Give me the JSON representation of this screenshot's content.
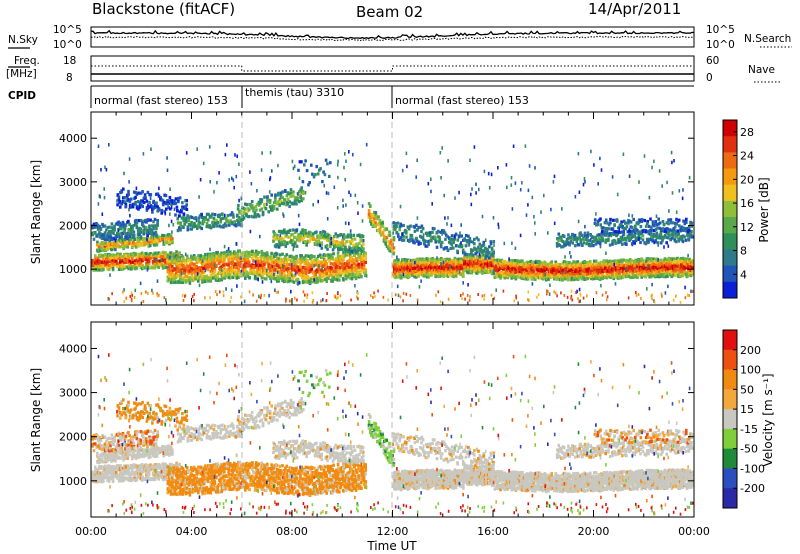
{
  "header": {
    "station": "Blackstone (fitACF)",
    "beam": "Beam 02",
    "date": "14/Apr/2011"
  },
  "summary_labels": {
    "nsky": "N.Sky",
    "nsearch": "N.Search",
    "freq": "Freq.",
    "freq_unit": "[MHz]",
    "nave": "Nave",
    "cpid": "CPID",
    "nsky_ticks": [
      "10^5",
      "10^0"
    ],
    "nsearch_ticks": [
      "10^5",
      "10^0"
    ],
    "freq_ticks": [
      "18",
      "8"
    ],
    "nave_ticks": [
      "60",
      "0"
    ]
  },
  "cpid_segments": [
    {
      "label": "normal (fast stereo) 153",
      "start_hour": 0,
      "end_hour": 6
    },
    {
      "label": "themis (tau) 3310",
      "start_hour": 6,
      "end_hour": 12
    },
    {
      "label": "normal (fast stereo) 153",
      "start_hour": 12,
      "end_hour": 24
    }
  ],
  "chart_data": [
    {
      "type": "heatmap",
      "name": "power",
      "ylabel": "Slant Range [km]",
      "xlabel": "",
      "x_ticks": [
        "00:00",
        "04:00",
        "08:00",
        "12:00",
        "16:00",
        "20:00",
        "00:00"
      ],
      "x_range_hours": [
        0,
        24
      ],
      "y_ticks": [
        1000,
        2000,
        3000,
        4000
      ],
      "ylim": [
        180,
        4600
      ],
      "colorbar": {
        "label": "Power [dB]",
        "ticks": [
          4,
          8,
          12,
          16,
          20,
          24,
          28
        ],
        "range": [
          0,
          30
        ],
        "colors": [
          "#0a1fd6",
          "#1f55b8",
          "#2e7a8a",
          "#2f8f5a",
          "#5aa84a",
          "#8fbf3a",
          "#f0c020",
          "#f59a10",
          "#ee6a10",
          "#e03010",
          "#d00000"
        ]
      }
    },
    {
      "type": "heatmap",
      "name": "velocity",
      "ylabel": "Slant Range [km]",
      "xlabel": "Time UT",
      "x_ticks": [
        "00:00",
        "04:00",
        "08:00",
        "12:00",
        "16:00",
        "20:00",
        "00:00"
      ],
      "x_range_hours": [
        0,
        24
      ],
      "y_ticks": [
        1000,
        2000,
        3000,
        4000
      ],
      "ylim": [
        180,
        4600
      ],
      "colorbar": {
        "label": "Velocity [m s⁻¹]",
        "ticks": [
          "200",
          "100",
          "50",
          "15",
          "-15",
          "-50",
          "-100",
          "-200"
        ],
        "colors": [
          "#2a2aa8",
          "#2b4fc0",
          "#1e8a3a",
          "#7fcf3c",
          "#c8c8c0",
          "#f2a83a",
          "#f08a10",
          "#ee5010",
          "#e01010"
        ],
        "ground_scatter_color": "#c8c8c0"
      }
    }
  ]
}
